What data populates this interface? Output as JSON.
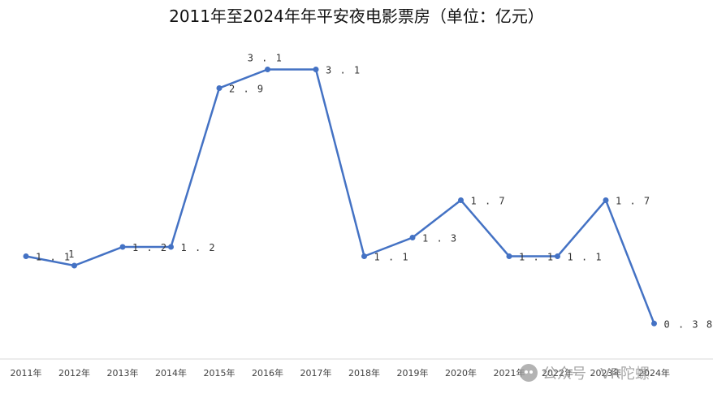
{
  "chart_data": {
    "type": "line",
    "title": "2011年至2024年年平安夜电影票房（单位：亿元）",
    "categories": [
      "2011年",
      "2012年",
      "2013年",
      "2014年",
      "2015年",
      "2016年",
      "2017年",
      "2018年",
      "2019年",
      "2020年",
      "2021年",
      "2022年",
      "2023年",
      "2024年"
    ],
    "series": [
      {
        "values": [
          1.1,
          1.0,
          1.2,
          1.2,
          2.9,
          3.1,
          3.1,
          1.1,
          1.3,
          1.7,
          1.1,
          1.1,
          1.7,
          0.38
        ],
        "labels": [
          "1.1",
          "1",
          "1.2",
          "1.2",
          "2.9",
          "3.1",
          "3.1",
          "1.1",
          "1.3",
          "1.7",
          "1.1",
          "1.1",
          "1.7",
          "0.38"
        ],
        "color": "#4472C4"
      }
    ],
    "ylim": [
      0,
      3.5
    ],
    "grid": false,
    "legend": "none"
  },
  "watermark": {
    "icon": "wechat-icon",
    "text": "公众号 · VR陀螺"
  }
}
